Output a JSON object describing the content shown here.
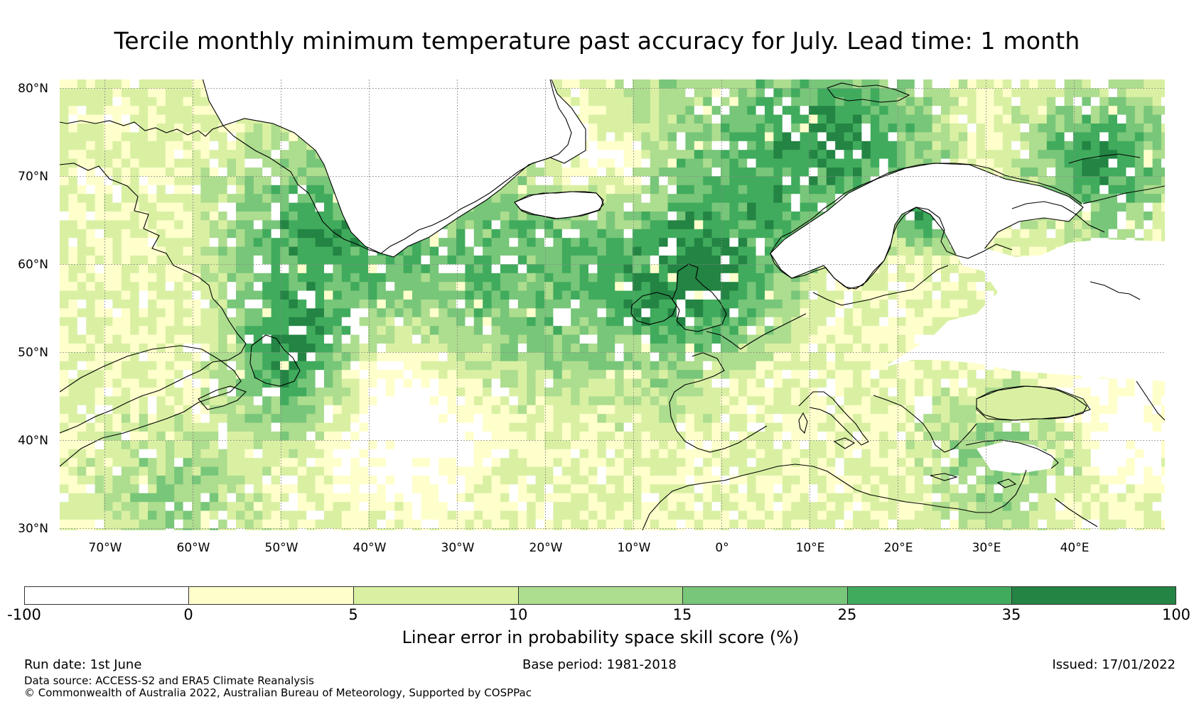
{
  "title": "Tercile monthly minimum temperature past accuracy for July. Lead time: 1 month",
  "map": {
    "lat_labels": [
      "80°N",
      "70°N",
      "60°N",
      "50°N",
      "40°N",
      "30°N"
    ],
    "lon_labels": [
      "70°W",
      "60°W",
      "50°W",
      "40°W",
      "30°W",
      "20°W",
      "10°W",
      "0°",
      "10°E",
      "20°E",
      "30°E",
      "40°E"
    ],
    "grid": "dotted gray graticule every 10 degrees",
    "land_mask_color": "#ffffff",
    "coastline_color": "#000000"
  },
  "colorbar": {
    "ticks": [
      "-100",
      "0",
      "5",
      "10",
      "15",
      "25",
      "35",
      "100"
    ],
    "colors": [
      "#ffffff",
      "#ffffcc",
      "#d9f0a3",
      "#addd8e",
      "#78c679",
      "#41ab5d",
      "#238443"
    ],
    "label": "Linear error in probability space skill score (%)"
  },
  "footer": {
    "run_date": "Run date: 1st June",
    "base_period": "Base period: 1981-2018",
    "issued": "Issued: 17/01/2022",
    "data_source": "Data source: ACCESS-S2 and ERA5 Climate Reanalysis",
    "copyright": "© Commonwealth of Australia 2022, Australian Bureau of Meteorology, Supported by COSPPac"
  }
}
